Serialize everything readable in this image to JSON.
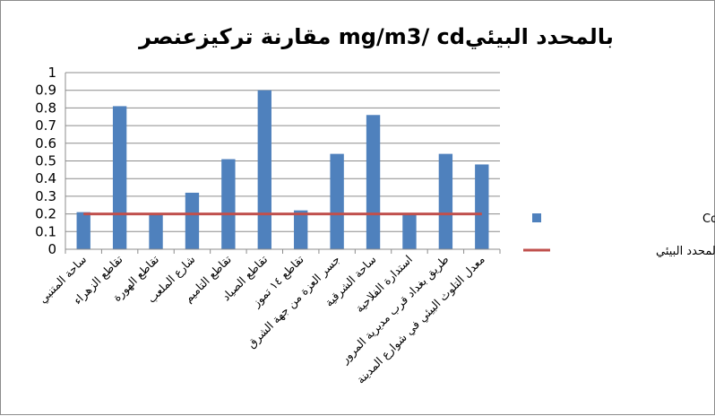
{
  "chart_data": {
    "type": "bar",
    "title": "مقارنة تركيزعنصر  mg/m3/ cdبالمحدد البيئي",
    "categories": [
      "ساحة المتنبي",
      "تقاطع الزهراء",
      "تقاطع الهورة",
      "شارع الملعب",
      "تقاطع التاميم",
      "تقاطع الصياد",
      "تقاطع ١٤ تموز",
      "جسر العزة من جهة الشرق",
      "ساحة الشرقية",
      "استدارة الفلاحية",
      "طريق بغداد قرب مديرية المرور",
      "معدل التلوث البيئي في شوارع المدينة"
    ],
    "series": [
      {
        "name": "عنصر الكادميوم Cd",
        "type": "bar",
        "color": "#4f81bd",
        "values": [
          0.21,
          0.81,
          0.2,
          0.32,
          0.51,
          0.9,
          0.22,
          0.54,
          0.76,
          0.2,
          0.54,
          0.48
        ]
      },
      {
        "name": "المحدد البيئي",
        "type": "line",
        "color": "#c0504d",
        "values": [
          0.2,
          0.2,
          0.2,
          0.2,
          0.2,
          0.2,
          0.2,
          0.2,
          0.2,
          0.2,
          0.2,
          0.2
        ]
      }
    ],
    "ylim": [
      0,
      1
    ],
    "yticks": [
      "0",
      "0.1",
      "0.2",
      "0.3",
      "0.4",
      "0.5",
      "0.6",
      "0.7",
      "0.8",
      "0.9",
      "1"
    ],
    "grid": true,
    "legend_position": "right"
  }
}
